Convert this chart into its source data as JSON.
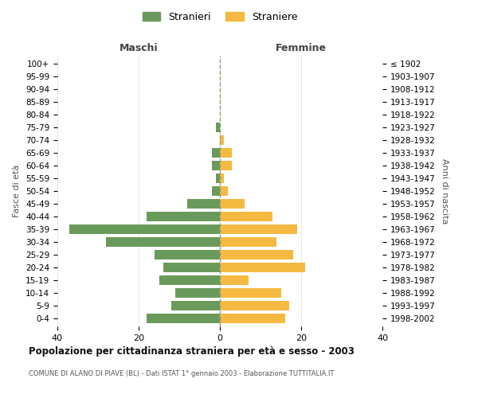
{
  "age_groups": [
    "0-4",
    "5-9",
    "10-14",
    "15-19",
    "20-24",
    "25-29",
    "30-34",
    "35-39",
    "40-44",
    "45-49",
    "50-54",
    "55-59",
    "60-64",
    "65-69",
    "70-74",
    "75-79",
    "80-84",
    "85-89",
    "90-94",
    "95-99",
    "100+"
  ],
  "birth_years": [
    "1998-2002",
    "1993-1997",
    "1988-1992",
    "1983-1987",
    "1978-1982",
    "1973-1977",
    "1968-1972",
    "1963-1967",
    "1958-1962",
    "1953-1957",
    "1948-1952",
    "1943-1947",
    "1938-1942",
    "1933-1937",
    "1928-1932",
    "1923-1927",
    "1918-1922",
    "1913-1917",
    "1908-1912",
    "1903-1907",
    "≤ 1902"
  ],
  "maschi": [
    18,
    12,
    11,
    15,
    14,
    16,
    28,
    37,
    18,
    8,
    2,
    1,
    2,
    2,
    0,
    1,
    0,
    0,
    0,
    0,
    0
  ],
  "femmine": [
    16,
    17,
    15,
    7,
    21,
    18,
    14,
    19,
    13,
    6,
    2,
    1,
    3,
    3,
    1,
    0,
    0,
    0,
    0,
    0,
    0
  ],
  "color_maschi": "#6a9a5b",
  "color_femmine": "#f5b942",
  "background_color": "#ffffff",
  "grid_color": "#cccccc",
  "title": "Popolazione per cittadinanza straniera per età e sesso - 2003",
  "subtitle": "COMUNE DI ALANO DI PIAVE (BL) - Dati ISTAT 1° gennaio 2003 - Elaborazione TUTTITALIA.IT",
  "xlabel_left": "Maschi",
  "xlabel_right": "Femmine",
  "ylabel_left": "Fasce di età",
  "ylabel_right": "Anni di nascita",
  "xlim": 40,
  "legend_stranieri": "Stranieri",
  "legend_straniere": "Straniere"
}
